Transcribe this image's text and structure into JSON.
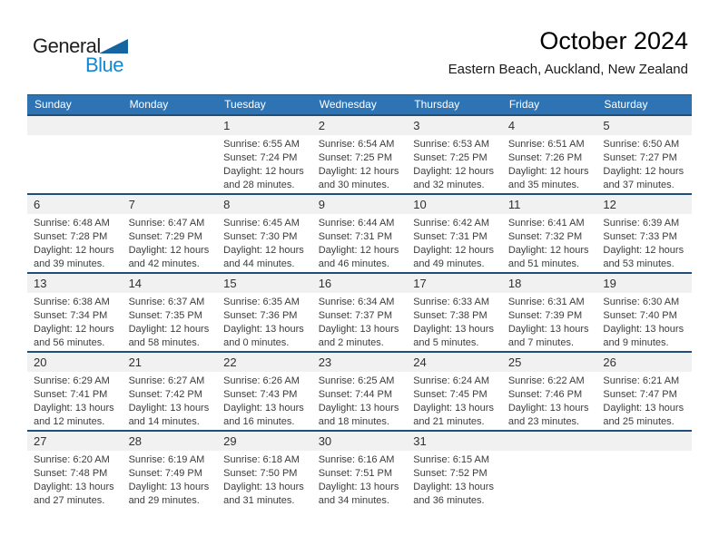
{
  "logo": {
    "general": "General",
    "blue": "Blue"
  },
  "header": {
    "title": "October 2024",
    "subtitle": "Eastern Beach, Auckland, New Zealand"
  },
  "colors": {
    "header_blue": "#2E74B5",
    "separator_blue": "#1F4E79",
    "band_gray": "#F1F1F1",
    "logo_blue": "#1787CB",
    "logo_triangle_blue": "#1565A0"
  },
  "calendar": {
    "day_headers": [
      "Sunday",
      "Monday",
      "Tuesday",
      "Wednesday",
      "Thursday",
      "Friday",
      "Saturday"
    ],
    "weeks": [
      {
        "days": [
          null,
          null,
          {
            "day": 1,
            "sunrise": "Sunrise: 6:55 AM",
            "sunset": "Sunset: 7:24 PM",
            "daylight": "Daylight: 12 hours and 28 minutes."
          },
          {
            "day": 2,
            "sunrise": "Sunrise: 6:54 AM",
            "sunset": "Sunset: 7:25 PM",
            "daylight": "Daylight: 12 hours and 30 minutes."
          },
          {
            "day": 3,
            "sunrise": "Sunrise: 6:53 AM",
            "sunset": "Sunset: 7:25 PM",
            "daylight": "Daylight: 12 hours and 32 minutes."
          },
          {
            "day": 4,
            "sunrise": "Sunrise: 6:51 AM",
            "sunset": "Sunset: 7:26 PM",
            "daylight": "Daylight: 12 hours and 35 minutes."
          },
          {
            "day": 5,
            "sunrise": "Sunrise: 6:50 AM",
            "sunset": "Sunset: 7:27 PM",
            "daylight": "Daylight: 12 hours and 37 minutes."
          }
        ]
      },
      {
        "days": [
          {
            "day": 6,
            "sunrise": "Sunrise: 6:48 AM",
            "sunset": "Sunset: 7:28 PM",
            "daylight": "Daylight: 12 hours and 39 minutes."
          },
          {
            "day": 7,
            "sunrise": "Sunrise: 6:47 AM",
            "sunset": "Sunset: 7:29 PM",
            "daylight": "Daylight: 12 hours and 42 minutes."
          },
          {
            "day": 8,
            "sunrise": "Sunrise: 6:45 AM",
            "sunset": "Sunset: 7:30 PM",
            "daylight": "Daylight: 12 hours and 44 minutes."
          },
          {
            "day": 9,
            "sunrise": "Sunrise: 6:44 AM",
            "sunset": "Sunset: 7:31 PM",
            "daylight": "Daylight: 12 hours and 46 minutes."
          },
          {
            "day": 10,
            "sunrise": "Sunrise: 6:42 AM",
            "sunset": "Sunset: 7:31 PM",
            "daylight": "Daylight: 12 hours and 49 minutes."
          },
          {
            "day": 11,
            "sunrise": "Sunrise: 6:41 AM",
            "sunset": "Sunset: 7:32 PM",
            "daylight": "Daylight: 12 hours and 51 minutes."
          },
          {
            "day": 12,
            "sunrise": "Sunrise: 6:39 AM",
            "sunset": "Sunset: 7:33 PM",
            "daylight": "Daylight: 12 hours and 53 minutes."
          }
        ]
      },
      {
        "days": [
          {
            "day": 13,
            "sunrise": "Sunrise: 6:38 AM",
            "sunset": "Sunset: 7:34 PM",
            "daylight": "Daylight: 12 hours and 56 minutes."
          },
          {
            "day": 14,
            "sunrise": "Sunrise: 6:37 AM",
            "sunset": "Sunset: 7:35 PM",
            "daylight": "Daylight: 12 hours and 58 minutes."
          },
          {
            "day": 15,
            "sunrise": "Sunrise: 6:35 AM",
            "sunset": "Sunset: 7:36 PM",
            "daylight": "Daylight: 13 hours and 0 minutes."
          },
          {
            "day": 16,
            "sunrise": "Sunrise: 6:34 AM",
            "sunset": "Sunset: 7:37 PM",
            "daylight": "Daylight: 13 hours and 2 minutes."
          },
          {
            "day": 17,
            "sunrise": "Sunrise: 6:33 AM",
            "sunset": "Sunset: 7:38 PM",
            "daylight": "Daylight: 13 hours and 5 minutes."
          },
          {
            "day": 18,
            "sunrise": "Sunrise: 6:31 AM",
            "sunset": "Sunset: 7:39 PM",
            "daylight": "Daylight: 13 hours and 7 minutes."
          },
          {
            "day": 19,
            "sunrise": "Sunrise: 6:30 AM",
            "sunset": "Sunset: 7:40 PM",
            "daylight": "Daylight: 13 hours and 9 minutes."
          }
        ]
      },
      {
        "days": [
          {
            "day": 20,
            "sunrise": "Sunrise: 6:29 AM",
            "sunset": "Sunset: 7:41 PM",
            "daylight": "Daylight: 13 hours and 12 minutes."
          },
          {
            "day": 21,
            "sunrise": "Sunrise: 6:27 AM",
            "sunset": "Sunset: 7:42 PM",
            "daylight": "Daylight: 13 hours and 14 minutes."
          },
          {
            "day": 22,
            "sunrise": "Sunrise: 6:26 AM",
            "sunset": "Sunset: 7:43 PM",
            "daylight": "Daylight: 13 hours and 16 minutes."
          },
          {
            "day": 23,
            "sunrise": "Sunrise: 6:25 AM",
            "sunset": "Sunset: 7:44 PM",
            "daylight": "Daylight: 13 hours and 18 minutes."
          },
          {
            "day": 24,
            "sunrise": "Sunrise: 6:24 AM",
            "sunset": "Sunset: 7:45 PM",
            "daylight": "Daylight: 13 hours and 21 minutes."
          },
          {
            "day": 25,
            "sunrise": "Sunrise: 6:22 AM",
            "sunset": "Sunset: 7:46 PM",
            "daylight": "Daylight: 13 hours and 23 minutes."
          },
          {
            "day": 26,
            "sunrise": "Sunrise: 6:21 AM",
            "sunset": "Sunset: 7:47 PM",
            "daylight": "Daylight: 13 hours and 25 minutes."
          }
        ]
      },
      {
        "days": [
          {
            "day": 27,
            "sunrise": "Sunrise: 6:20 AM",
            "sunset": "Sunset: 7:48 PM",
            "daylight": "Daylight: 13 hours and 27 minutes."
          },
          {
            "day": 28,
            "sunrise": "Sunrise: 6:19 AM",
            "sunset": "Sunset: 7:49 PM",
            "daylight": "Daylight: 13 hours and 29 minutes."
          },
          {
            "day": 29,
            "sunrise": "Sunrise: 6:18 AM",
            "sunset": "Sunset: 7:50 PM",
            "daylight": "Daylight: 13 hours and 31 minutes."
          },
          {
            "day": 30,
            "sunrise": "Sunrise: 6:16 AM",
            "sunset": "Sunset: 7:51 PM",
            "daylight": "Daylight: 13 hours and 34 minutes."
          },
          {
            "day": 31,
            "sunrise": "Sunrise: 6:15 AM",
            "sunset": "Sunset: 7:52 PM",
            "daylight": "Daylight: 13 hours and 36 minutes."
          },
          null,
          null
        ]
      }
    ]
  }
}
